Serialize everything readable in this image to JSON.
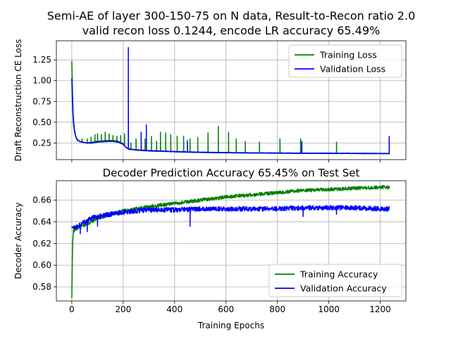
{
  "chart_data": [
    {
      "type": "line",
      "title": "Semi-AE of layer 300-150-75 on N data, Result-to-Recon ratio 2.0\nvalid recon loss 0.1244, encode LR accuracy 65.49%",
      "xlabel": "",
      "ylabel": "Draft Reconstruction CE Loss",
      "xlim": [
        -60,
        1300
      ],
      "ylim": [
        0.05,
        1.48
      ],
      "xticks": [
        0,
        200,
        400,
        600,
        800,
        1000,
        1200
      ],
      "yticks": [
        0.25,
        0.5,
        0.75,
        1.0,
        1.25
      ],
      "ytick_labels": [
        "0.25",
        "0.50",
        "0.75",
        "1.00",
        "1.25"
      ],
      "show_xtick_labels": false,
      "grid": true,
      "legend": "top-right",
      "series": [
        {
          "name": "Training Loss",
          "color": "#008000",
          "x": [
            0,
            2,
            4,
            6,
            10,
            15,
            20,
            30,
            40,
            50,
            60,
            80,
            100,
            120,
            140,
            160,
            180,
            200,
            210,
            220,
            240,
            260,
            300,
            350,
            400,
            450,
            500,
            600,
            700,
            800,
            900,
            1000,
            1100,
            1200,
            1236
          ],
          "y": [
            1.24,
            0.95,
            0.72,
            0.55,
            0.42,
            0.34,
            0.3,
            0.27,
            0.26,
            0.255,
            0.25,
            0.26,
            0.27,
            0.275,
            0.28,
            0.28,
            0.27,
            0.24,
            0.2,
            0.175,
            0.168,
            0.162,
            0.155,
            0.15,
            0.145,
            0.14,
            0.137,
            0.133,
            0.13,
            0.128,
            0.126,
            0.125,
            0.124,
            0.123,
            0.123
          ],
          "spikes": [
            [
              40,
              0.3
            ],
            [
              60,
              0.3
            ],
            [
              75,
              0.32
            ],
            [
              90,
              0.35
            ],
            [
              100,
              0.36
            ],
            [
              115,
              0.35
            ],
            [
              130,
              0.38
            ],
            [
              145,
              0.36
            ],
            [
              160,
              0.34
            ],
            [
              175,
              0.33
            ],
            [
              190,
              0.34
            ],
            [
              205,
              0.36
            ],
            [
              230,
              0.25
            ],
            [
              250,
              0.3
            ],
            [
              285,
              0.3
            ],
            [
              310,
              0.33
            ],
            [
              330,
              0.27
            ],
            [
              345,
              0.38
            ],
            [
              365,
              0.37
            ],
            [
              385,
              0.35
            ],
            [
              410,
              0.33
            ],
            [
              435,
              0.33
            ],
            [
              460,
              0.3
            ],
            [
              490,
              0.32
            ],
            [
              530,
              0.37
            ],
            [
              570,
              0.45
            ],
            [
              610,
              0.38
            ],
            [
              640,
              0.3
            ],
            [
              675,
              0.27
            ],
            [
              730,
              0.26
            ],
            [
              810,
              0.3
            ],
            [
              890,
              0.3
            ],
            [
              1030,
              0.26
            ]
          ]
        },
        {
          "name": "Validation Loss",
          "color": "#0000ff",
          "x": [
            0,
            2,
            4,
            6,
            10,
            15,
            20,
            30,
            40,
            50,
            60,
            80,
            100,
            120,
            140,
            160,
            180,
            200,
            210,
            220,
            240,
            260,
            300,
            350,
            400,
            450,
            500,
            600,
            700,
            800,
            900,
            1000,
            1100,
            1200,
            1236
          ],
          "y": [
            1.03,
            0.8,
            0.62,
            0.5,
            0.4,
            0.33,
            0.29,
            0.27,
            0.26,
            0.255,
            0.25,
            0.25,
            0.26,
            0.265,
            0.27,
            0.27,
            0.26,
            0.235,
            0.2,
            0.18,
            0.17,
            0.165,
            0.158,
            0.152,
            0.146,
            0.142,
            0.138,
            0.134,
            0.131,
            0.129,
            0.127,
            0.126,
            0.125,
            0.124,
            0.124
          ],
          "spikes": [
            [
              220,
              1.4
            ],
            [
              270,
              0.38
            ],
            [
              290,
              0.47
            ],
            [
              450,
              0.28
            ],
            [
              895,
              0.27
            ],
            [
              1235,
              0.33
            ]
          ]
        }
      ]
    },
    {
      "type": "line",
      "title": "Decoder Prediction Accuracy 65.45% on Test Set",
      "xlabel": "Training Epochs",
      "ylabel": "Decoder Accuracy",
      "xlim": [
        -60,
        1300
      ],
      "ylim": [
        0.567,
        0.678
      ],
      "xticks": [
        0,
        200,
        400,
        600,
        800,
        1000,
        1200
      ],
      "yticks": [
        0.58,
        0.6,
        0.62,
        0.64,
        0.66
      ],
      "ytick_labels": [
        "0.58",
        "0.60",
        "0.62",
        "0.64",
        "0.66"
      ],
      "show_xtick_labels": true,
      "grid": true,
      "legend": "bottom-right",
      "series": [
        {
          "name": "Training Accuracy",
          "color": "#008000",
          "x": [
            0,
            2,
            4,
            6,
            10,
            15,
            20,
            30,
            50,
            75,
            100,
            150,
            200,
            250,
            300,
            400,
            500,
            600,
            700,
            800,
            900,
            1000,
            1100,
            1200,
            1236
          ],
          "y": [
            0.57,
            0.604,
            0.625,
            0.632,
            0.632,
            0.633,
            0.634,
            0.635,
            0.637,
            0.64,
            0.643,
            0.647,
            0.65,
            0.652,
            0.654,
            0.657,
            0.66,
            0.663,
            0.665,
            0.667,
            0.669,
            0.67,
            0.671,
            0.672,
            0.672
          ],
          "noise": 0.0016
        },
        {
          "name": "Validation Accuracy",
          "color": "#0000ff",
          "x": [
            0,
            10,
            20,
            30,
            50,
            75,
            100,
            150,
            200,
            250,
            300,
            350,
            400,
            500,
            600,
            700,
            800,
            900,
            1000,
            1100,
            1200,
            1236
          ],
          "y": [
            0.635,
            0.635,
            0.636,
            0.637,
            0.64,
            0.643,
            0.645,
            0.647,
            0.649,
            0.65,
            0.651,
            0.651,
            0.651,
            0.652,
            0.652,
            0.652,
            0.652,
            0.653,
            0.653,
            0.653,
            0.652,
            0.652
          ],
          "noise": 0.0022,
          "dips": [
            [
              33,
              0.629
            ],
            [
              60,
              0.631
            ],
            [
              100,
              0.636
            ],
            [
              460,
              0.636
            ],
            [
              900,
              0.645
            ],
            [
              1030,
              0.647
            ]
          ]
        }
      ]
    }
  ]
}
